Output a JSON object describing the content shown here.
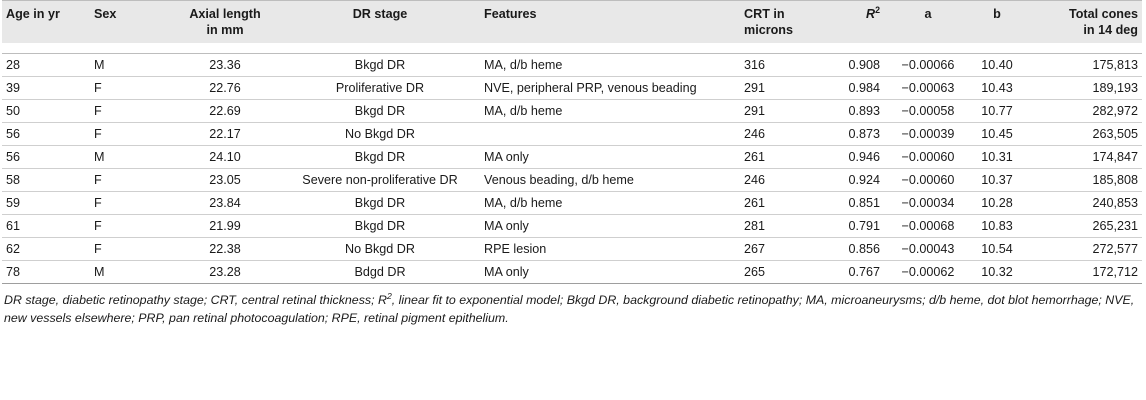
{
  "table": {
    "headers": {
      "age": "Age in yr",
      "sex": "Sex",
      "axial_line1": "Axial length",
      "axial_line2": "in mm",
      "stage": "DR stage",
      "features": "Features",
      "crt_line1": "CRT in",
      "crt_line2": "microns",
      "r2_base": "R",
      "r2_sup": "2",
      "a": "a",
      "b": "b",
      "cones_line1": "Total cones",
      "cones_line2": "in 14 deg"
    },
    "rows": [
      {
        "age": "28",
        "sex": "M",
        "axial": "23.36",
        "stage": "Bkgd DR",
        "features": "MA, d/b heme",
        "crt": "316",
        "r2": "0.908",
        "a": "−0.00066",
        "b": "10.40",
        "cones": "175,813"
      },
      {
        "age": "39",
        "sex": "F",
        "axial": "22.76",
        "stage": "Proliferative DR",
        "features": "NVE, peripheral PRP, venous beading",
        "crt": "291",
        "r2": "0.984",
        "a": "−0.00063",
        "b": "10.43",
        "cones": "189,193"
      },
      {
        "age": "50",
        "sex": "F",
        "axial": "22.69",
        "stage": "Bkgd DR",
        "features": "MA, d/b heme",
        "crt": "291",
        "r2": "0.893",
        "a": "−0.00058",
        "b": "10.77",
        "cones": "282,972"
      },
      {
        "age": "56",
        "sex": "F",
        "axial": "22.17",
        "stage": "No Bkgd DR",
        "features": "",
        "crt": "246",
        "r2": "0.873",
        "a": "−0.00039",
        "b": "10.45",
        "cones": "263,505"
      },
      {
        "age": "56",
        "sex": "M",
        "axial": "24.10",
        "stage": "Bkgd DR",
        "features": "MA only",
        "crt": "261",
        "r2": "0.946",
        "a": "−0.00060",
        "b": "10.31",
        "cones": "174,847"
      },
      {
        "age": "58",
        "sex": "F",
        "axial": "23.05",
        "stage": "Severe non-proliferative DR",
        "features": "Venous beading, d/b heme",
        "crt": "246",
        "r2": "0.924",
        "a": "−0.00060",
        "b": "10.37",
        "cones": "185,808"
      },
      {
        "age": "59",
        "sex": "F",
        "axial": "23.84",
        "stage": "Bkgd DR",
        "features": "MA, d/b heme",
        "crt": "261",
        "r2": "0.851",
        "a": "−0.00034",
        "b": "10.28",
        "cones": "240,853"
      },
      {
        "age": "61",
        "sex": "F",
        "axial": "21.99",
        "stage": "Bkgd DR",
        "features": "MA only",
        "crt": "281",
        "r2": "0.791",
        "a": "−0.00068",
        "b": "10.83",
        "cones": "265,231"
      },
      {
        "age": "62",
        "sex": "F",
        "axial": "22.38",
        "stage": "No Bkgd DR",
        "features": "RPE lesion",
        "crt": "267",
        "r2": "0.856",
        "a": "−0.00043",
        "b": "10.54",
        "cones": "272,577"
      },
      {
        "age": "78",
        "sex": "M",
        "axial": "23.28",
        "stage": "Bdgd DR",
        "features": "MA only",
        "crt": "265",
        "r2": "0.767",
        "a": "−0.00062",
        "b": "10.32",
        "cones": "172,712"
      }
    ]
  },
  "footnote": {
    "part1": "DR stage, diabetic retinopathy stage; CRT, central retinal thickness; R",
    "sup": "2",
    "part2": ", linear fit to exponential model; Bkgd DR, background diabetic retinopathy; MA, microaneurysms; d/b heme, dot blot hemorrhage; NVE, new vessels elsewhere; PRP, pan retinal photocoagulation; RPE, retinal pigment epithelium."
  }
}
